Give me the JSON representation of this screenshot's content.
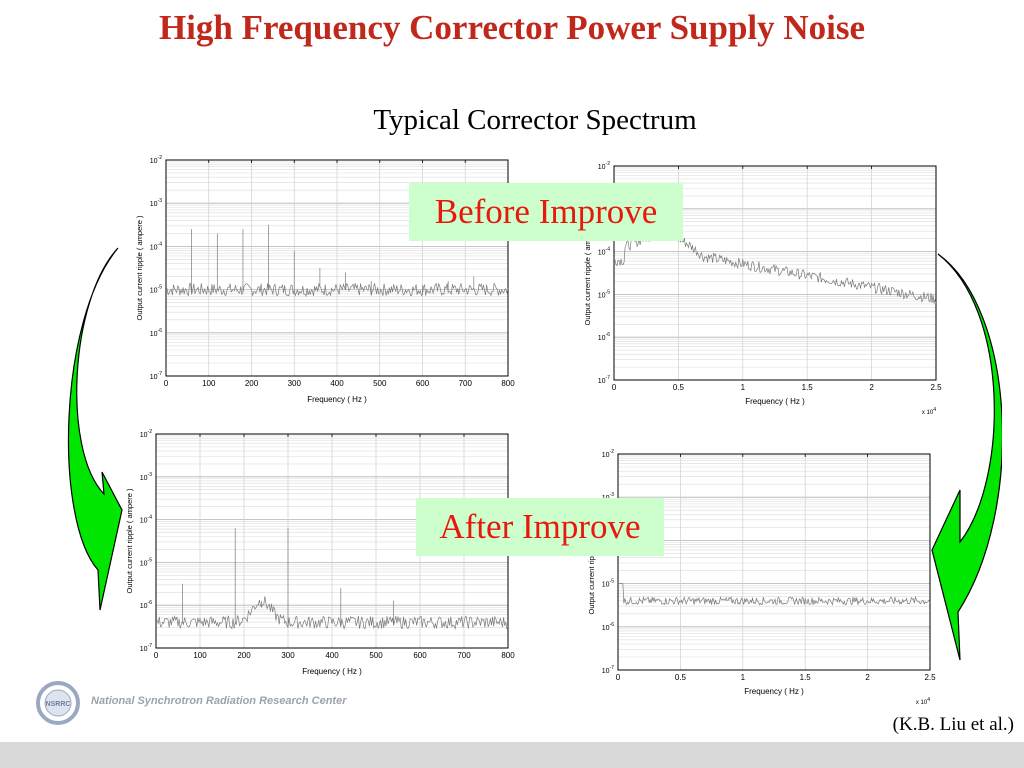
{
  "slide": {
    "title": "High Frequency Corrector Power Supply Noise",
    "subtitle": "Typical Corrector Spectrum",
    "before_label": "Before Improve",
    "after_label": "After Improve",
    "credit": "(K.B. Liu et al.)",
    "logo_text": "National Synchrotron Radiation Research Center",
    "logo_badge": "NSRRC"
  },
  "colors": {
    "title": "#c0281c",
    "callout_bg": "#ccffcc",
    "callout_text": "#e8180e",
    "arrow_fill": "#00e600",
    "trace": "#7a7a7a"
  },
  "chart_data": [
    {
      "type": "line",
      "panel": "top-left",
      "xlabel": "Frequency  ( Hz )",
      "ylabel": "Output current ripple  ( ampere )",
      "xlim": [
        0,
        800
      ],
      "xticks": [
        "0",
        "100",
        "200",
        "300",
        "400",
        "500",
        "600",
        "700",
        "800"
      ],
      "ylim_exp": [
        -7,
        -2
      ],
      "yscale": "log",
      "x_multiplier": "",
      "baseline_exp": -5.0,
      "peaks": [
        [
          60,
          -3.6
        ],
        [
          120,
          -3.7
        ],
        [
          180,
          -3.6
        ],
        [
          240,
          -3.5
        ],
        [
          300,
          -4.1
        ],
        [
          360,
          -4.5
        ],
        [
          420,
          -4.6
        ],
        [
          480,
          -4.8
        ],
        [
          540,
          -4.9
        ],
        [
          600,
          -4.9
        ],
        [
          660,
          -4.8
        ],
        [
          720,
          -4.7
        ]
      ],
      "grid": true
    },
    {
      "type": "line",
      "panel": "top-right",
      "xlabel": "Frequency  ( Hz )",
      "ylabel": "Output current ripple  ( ampere )",
      "xlim": [
        0,
        2.5
      ],
      "xticks": [
        "0",
        "0.5",
        "1",
        "1.5",
        "2",
        "2.5"
      ],
      "ylim_exp": [
        -7,
        -2
      ],
      "yscale": "log",
      "x_multiplier": "x 10^4",
      "grid": true
    },
    {
      "type": "line",
      "panel": "bottom-left",
      "xlabel": "Frequency  ( Hz )",
      "ylabel": "Output current ripple  ( ampere )",
      "xlim": [
        0,
        800
      ],
      "xticks": [
        "0",
        "100",
        "200",
        "300",
        "400",
        "500",
        "600",
        "700",
        "800"
      ],
      "ylim_exp": [
        -7,
        -2
      ],
      "yscale": "log",
      "x_multiplier": "",
      "baseline_exp": -6.4,
      "peaks": [
        [
          60,
          -5.5
        ],
        [
          180,
          -4.2
        ],
        [
          300,
          -4.2
        ],
        [
          420,
          -5.6
        ],
        [
          540,
          -5.9
        ],
        [
          240,
          -5.9
        ]
      ],
      "grid": true
    },
    {
      "type": "line",
      "panel": "bottom-right",
      "xlabel": "Frequency  ( Hz )",
      "ylabel": "Output current ripple  ( ampere )",
      "xlim": [
        0,
        2.5
      ],
      "xticks": [
        "0",
        "0.5",
        "1",
        "1.5",
        "2",
        "2.5"
      ],
      "ylim_exp": [
        -7,
        -2
      ],
      "yscale": "log",
      "x_multiplier": "x 10^4",
      "baseline_exp": -5.4,
      "grid": true
    }
  ]
}
